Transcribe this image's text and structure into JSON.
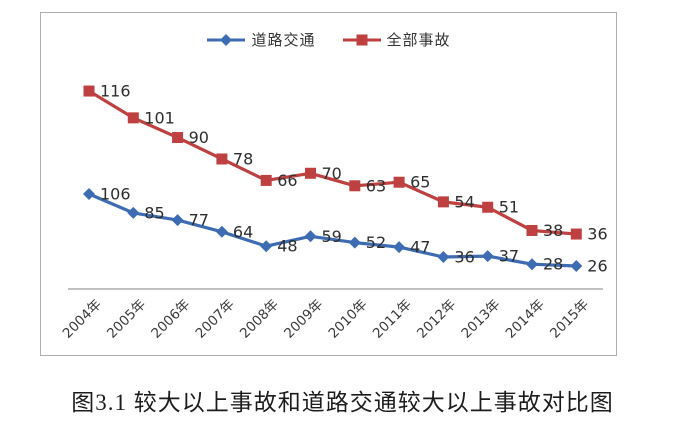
{
  "caption": "图3.1 较大以上事故和道路交通较大以上事故对比图",
  "chart_data": {
    "type": "line",
    "title": "",
    "categories": [
      "2004年",
      "2005年",
      "2006年",
      "2007年",
      "2008年",
      "2009年",
      "2010年",
      "2011年",
      "2012年",
      "2013年",
      "2014年",
      "2015年"
    ],
    "series": [
      {
        "name": "道路交通",
        "marker": "diamond",
        "color": "#3E6CB2",
        "values": [
          106,
          85,
          77,
          64,
          48,
          59,
          52,
          47,
          36,
          37,
          28,
          26
        ]
      },
      {
        "name": "全部事故",
        "marker": "square",
        "color": "#BE4040",
        "values": [
          116,
          101,
          90,
          78,
          66,
          70,
          63,
          65,
          54,
          51,
          38,
          36
        ]
      }
    ],
    "legend_position": "top",
    "grid": false,
    "data_labels": true,
    "label_color": "#2e2e2e",
    "tick_label_color": "#3a3a3a",
    "axis_color": "#9c9c9c",
    "xlabel": "",
    "ylabel": ""
  }
}
